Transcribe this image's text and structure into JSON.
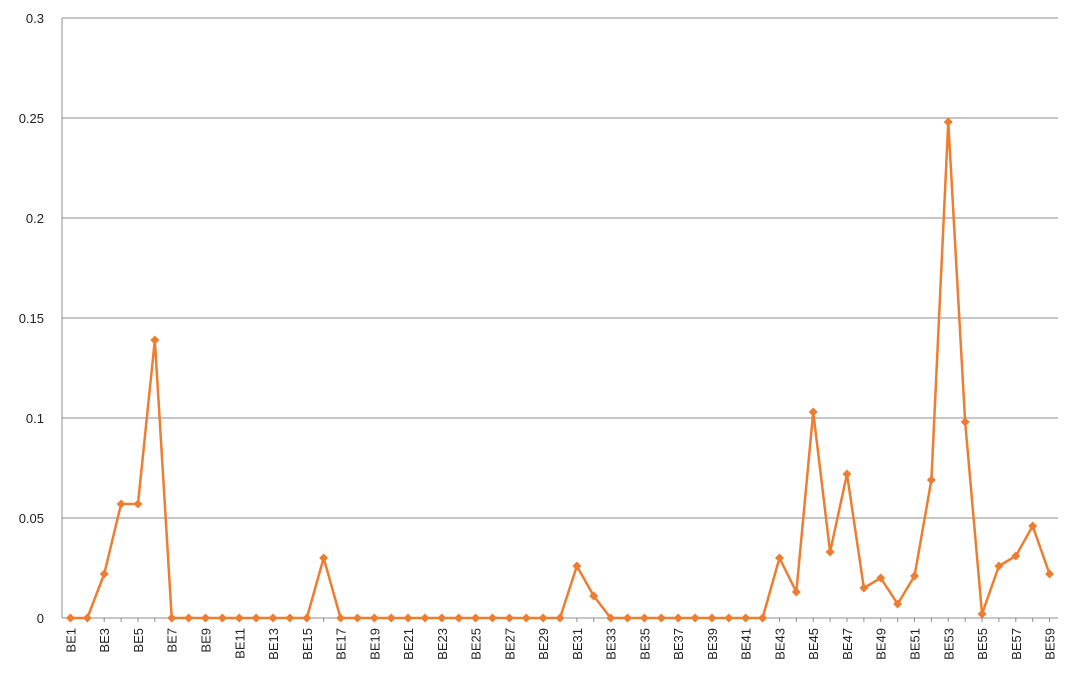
{
  "chart_data": {
    "type": "line",
    "categories": [
      "BE1",
      null,
      "BE3",
      null,
      "BE5",
      null,
      "BE7",
      null,
      "BE9",
      null,
      "BE11",
      null,
      "BE13",
      null,
      "BE15",
      null,
      "BE17",
      null,
      "BE19",
      null,
      "BE21",
      null,
      "BE23",
      null,
      "BE25",
      null,
      "BE27",
      null,
      "BE29",
      null,
      "BE31",
      null,
      "BE33",
      null,
      "BE35",
      null,
      "BE37",
      null,
      "BE39",
      null,
      "BE41",
      null,
      "BE43",
      null,
      "BE45",
      null,
      "BE47",
      null,
      "BE49",
      null,
      "BE51",
      null,
      "BE53",
      null,
      "BE55",
      null,
      "BE57",
      null,
      "BE59"
    ],
    "values": [
      0,
      0,
      0.022,
      0.057,
      0.057,
      0.139,
      0,
      0,
      0,
      0,
      0,
      0,
      0,
      0,
      0,
      0.03,
      0,
      0,
      0,
      0,
      0,
      0,
      0,
      0,
      0,
      0,
      0,
      0,
      0,
      0,
      0.026,
      0.011,
      0,
      0,
      0,
      0,
      0,
      0,
      0,
      0,
      0,
      0,
      0.03,
      0.013,
      0.103,
      0.033,
      0.072,
      0.015,
      0.02,
      0.007,
      0.021,
      0.069,
      0.248,
      0.098,
      0.002,
      0.026,
      0.031,
      0.046,
      0.022
    ],
    "color": "#ed7d31",
    "ylim": [
      0,
      0.3
    ],
    "yticks": [
      0,
      0.05,
      0.1,
      0.15,
      0.2,
      0.25,
      0.3
    ],
    "grid": true
  }
}
